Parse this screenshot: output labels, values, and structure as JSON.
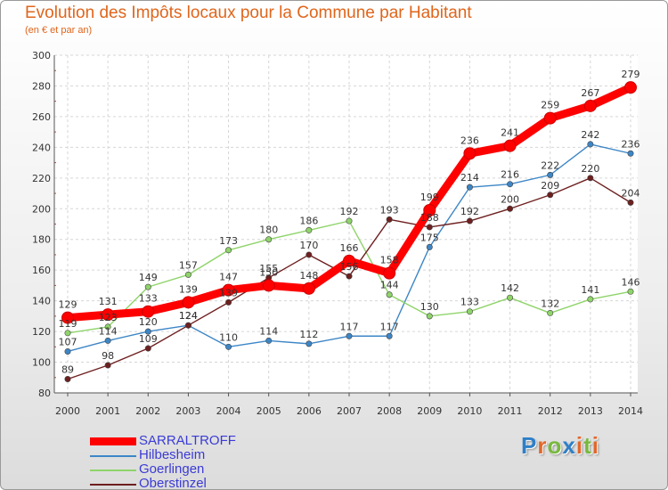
{
  "chart_data": {
    "type": "line",
    "title": "Evolution des Impôts locaux pour la Commune par Habitant",
    "subtitle": "(en € et par an)",
    "x": [
      "2000",
      "2001",
      "2002",
      "2003",
      "2004",
      "2005",
      "2006",
      "2007",
      "2008",
      "2009",
      "2010",
      "2011",
      "2012",
      "2013",
      "2014"
    ],
    "ylim": [
      80,
      300
    ],
    "yticks": [
      "80",
      "100",
      "120",
      "140",
      "160",
      "180",
      "200",
      "220",
      "240",
      "260",
      "280",
      "300"
    ],
    "grid": true,
    "series": [
      {
        "name": "SARRALTROFF",
        "color": "#ff0000",
        "values": [
          129,
          131,
          133,
          139,
          147,
          150,
          148,
          166,
          158,
          199,
          236,
          241,
          259,
          267,
          279
        ],
        "labels": [
          "129",
          "131",
          "133",
          "139",
          "147",
          "150",
          "148",
          "166",
          "158",
          "199",
          "236",
          "241",
          "259",
          "267",
          "279"
        ]
      },
      {
        "name": "Hilbesheim",
        "color": "#3d86c6",
        "values": [
          107,
          114,
          120,
          124,
          110,
          114,
          112,
          117,
          117,
          175,
          214,
          216,
          222,
          242,
          236
        ],
        "labels": [
          "107",
          "114",
          "120",
          "124",
          "110",
          "114",
          "112",
          "117",
          "117",
          "175",
          "214",
          "216",
          "222",
          "242",
          "236"
        ]
      },
      {
        "name": "Goerlingen",
        "color": "#8fd46a",
        "values": [
          119,
          123,
          149,
          157,
          173,
          180,
          186,
          192,
          144,
          130,
          133,
          142,
          132,
          141,
          146
        ],
        "labels": [
          "119",
          "123",
          "149",
          "157",
          "173",
          "180",
          "186",
          "192",
          "144",
          "130",
          "133",
          "142",
          "132",
          "141",
          "146"
        ]
      },
      {
        "name": "Oberstinzel",
        "color": "#6e1f1f",
        "values": [
          89,
          98,
          109,
          124,
          139,
          155,
          170,
          156,
          193,
          188,
          192,
          200,
          209,
          220,
          204
        ],
        "labels": [
          "89",
          "98",
          "109",
          "124",
          "139",
          "155",
          "170",
          "156",
          "193",
          "188",
          "192",
          "200",
          "209",
          "220",
          "204"
        ]
      }
    ]
  },
  "logo": {
    "letters": [
      "P",
      "r",
      "o",
      "x",
      "i",
      "t",
      "i"
    ],
    "colors": [
      "#2e7fc8",
      "#e2672a",
      "#79b840",
      "#2e7fc8",
      "#e2672a",
      "#79b840",
      "#e2672a"
    ]
  }
}
